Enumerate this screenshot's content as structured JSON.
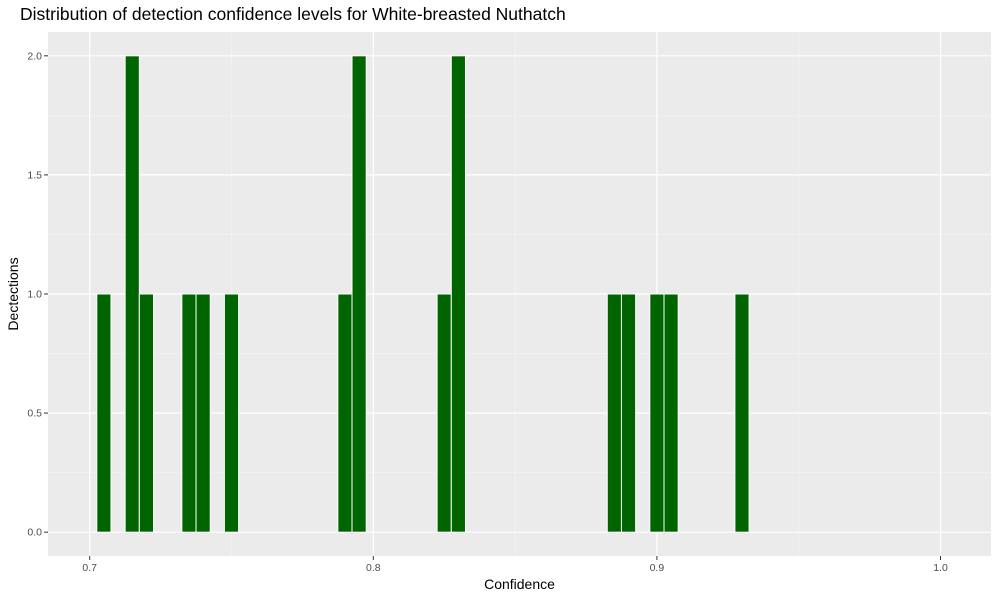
{
  "chart_data": {
    "type": "bar",
    "title": "Distribution of detection confidence levels for White-breasted Nuthatch",
    "xlabel": "Confidence",
    "ylabel": "Dectections",
    "xlim": [
      0.6853,
      1.0178
    ],
    "ylim": [
      -0.1,
      2.1
    ],
    "x_ticks": [
      0.7,
      0.8,
      0.9,
      1.0
    ],
    "x_tick_labels": [
      "0.7",
      "0.8",
      "0.9",
      "1.0"
    ],
    "y_ticks": [
      0,
      0.5,
      1.0,
      1.5,
      2.0
    ],
    "y_tick_labels": [
      "0.0",
      "0.5",
      "1.0",
      "1.5",
      "2.0"
    ],
    "bin_width": 0.005,
    "bar_color": "#006400",
    "panel_color": "#ebebeb",
    "grid": true,
    "bars": [
      {
        "x": 0.705,
        "y": 1
      },
      {
        "x": 0.715,
        "y": 2
      },
      {
        "x": 0.72,
        "y": 1
      },
      {
        "x": 0.735,
        "y": 1
      },
      {
        "x": 0.74,
        "y": 1
      },
      {
        "x": 0.75,
        "y": 1
      },
      {
        "x": 0.79,
        "y": 1
      },
      {
        "x": 0.795,
        "y": 2
      },
      {
        "x": 0.825,
        "y": 1
      },
      {
        "x": 0.83,
        "y": 2
      },
      {
        "x": 0.885,
        "y": 1
      },
      {
        "x": 0.89,
        "y": 1
      },
      {
        "x": 0.9,
        "y": 1
      },
      {
        "x": 0.905,
        "y": 1
      },
      {
        "x": 0.93,
        "y": 1
      }
    ]
  }
}
